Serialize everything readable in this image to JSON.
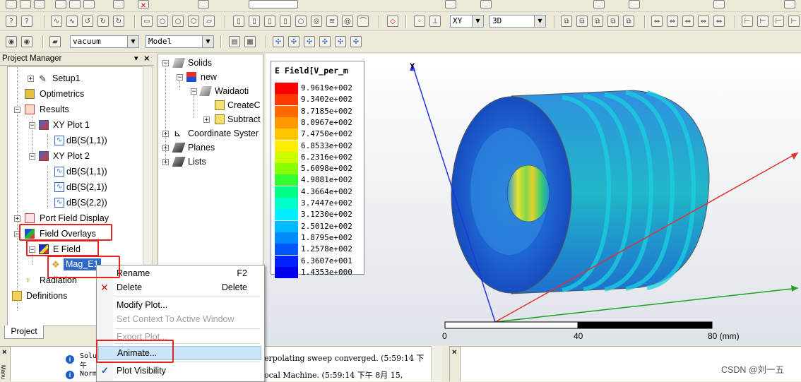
{
  "toolbar": {
    "material_combo": "vacuum",
    "model_combo": "Model",
    "plane_combo": "XY",
    "view_combo": "3D"
  },
  "project_manager": {
    "title": "Project Manager",
    "close_glyph": "×",
    "pin_glyph": "▾",
    "tab_label": "Project",
    "items": {
      "setup1": "Setup1",
      "optimetrics": "Optimetrics",
      "results": "Results",
      "xyplot1": "XY Plot 1",
      "xyplot1_dbs11": "dB(S(1,1))",
      "xyplot2": "XY Plot 2",
      "xyplot2_dbs11": "dB(S(1,1))",
      "xyplot2_dbs21": "dB(S(2,1))",
      "xyplot2_dbs22": "dB(S(2,2))",
      "port_field_display": "Port Field Display",
      "field_overlays": "Field Overlays",
      "e_field": "E Field",
      "mag_e1": "Mag_E1",
      "radiation": "Radiation",
      "definitions": "Definitions"
    }
  },
  "model_tree": {
    "solids": "Solids",
    "new": "new",
    "waidaoti": "Waidaoti",
    "createc": "CreateC",
    "subtract": "Subtract",
    "coordinate_systems": "Coordinate Syster",
    "planes": "Planes",
    "lists": "Lists"
  },
  "legend": {
    "title": "E Field[V_per_m",
    "entries": [
      {
        "value": "9.9619e+002",
        "color": "#ff0000"
      },
      {
        "value": "9.3402e+002",
        "color": "#ff3a00"
      },
      {
        "value": "8.7185e+002",
        "color": "#ff6a00"
      },
      {
        "value": "8.0967e+002",
        "color": "#ff9a00"
      },
      {
        "value": "7.4750e+002",
        "color": "#ffc600"
      },
      {
        "value": "6.8533e+002",
        "color": "#ffee00"
      },
      {
        "value": "6.2316e+002",
        "color": "#ccff00"
      },
      {
        "value": "5.6098e+002",
        "color": "#88ff00"
      },
      {
        "value": "4.9881e+002",
        "color": "#33ff33"
      },
      {
        "value": "4.3664e+002",
        "color": "#00ff88"
      },
      {
        "value": "3.7447e+002",
        "color": "#00ffcc"
      },
      {
        "value": "3.1230e+002",
        "color": "#00eeff"
      },
      {
        "value": "2.5012e+002",
        "color": "#00bbff"
      },
      {
        "value": "1.8795e+002",
        "color": "#0088ff"
      },
      {
        "value": "1.2578e+002",
        "color": "#0055ff"
      },
      {
        "value": "6.3607e+001",
        "color": "#0022ff"
      },
      {
        "value": "1.4353e+000",
        "color": "#0000ee"
      }
    ]
  },
  "viewport": {
    "axis_y_label": "Y",
    "scale_labels": [
      "0",
      "40",
      "80 (mm)"
    ]
  },
  "context_menu": {
    "rename": "Rename",
    "rename_shortcut": "F2",
    "delete": "Delete",
    "delete_shortcut": "Delete",
    "modify_plot": "Modify Plot...",
    "set_context": "Set Context To Active Window",
    "export_plot": "Export Plot...",
    "animate": "Animate...",
    "plot_visibility": "Plot Visibility"
  },
  "bottom": {
    "msg1": "Solu",
    "msg1b": "午",
    "msg2": "Norm",
    "log_line1": "erpolating sweep converged. (5:59:14 下",
    "log_line2": "ocal Machine. (5:59:14 下午  8月 15,",
    "side_label": "Manu",
    "watermark": "CSDN @刘一五"
  }
}
